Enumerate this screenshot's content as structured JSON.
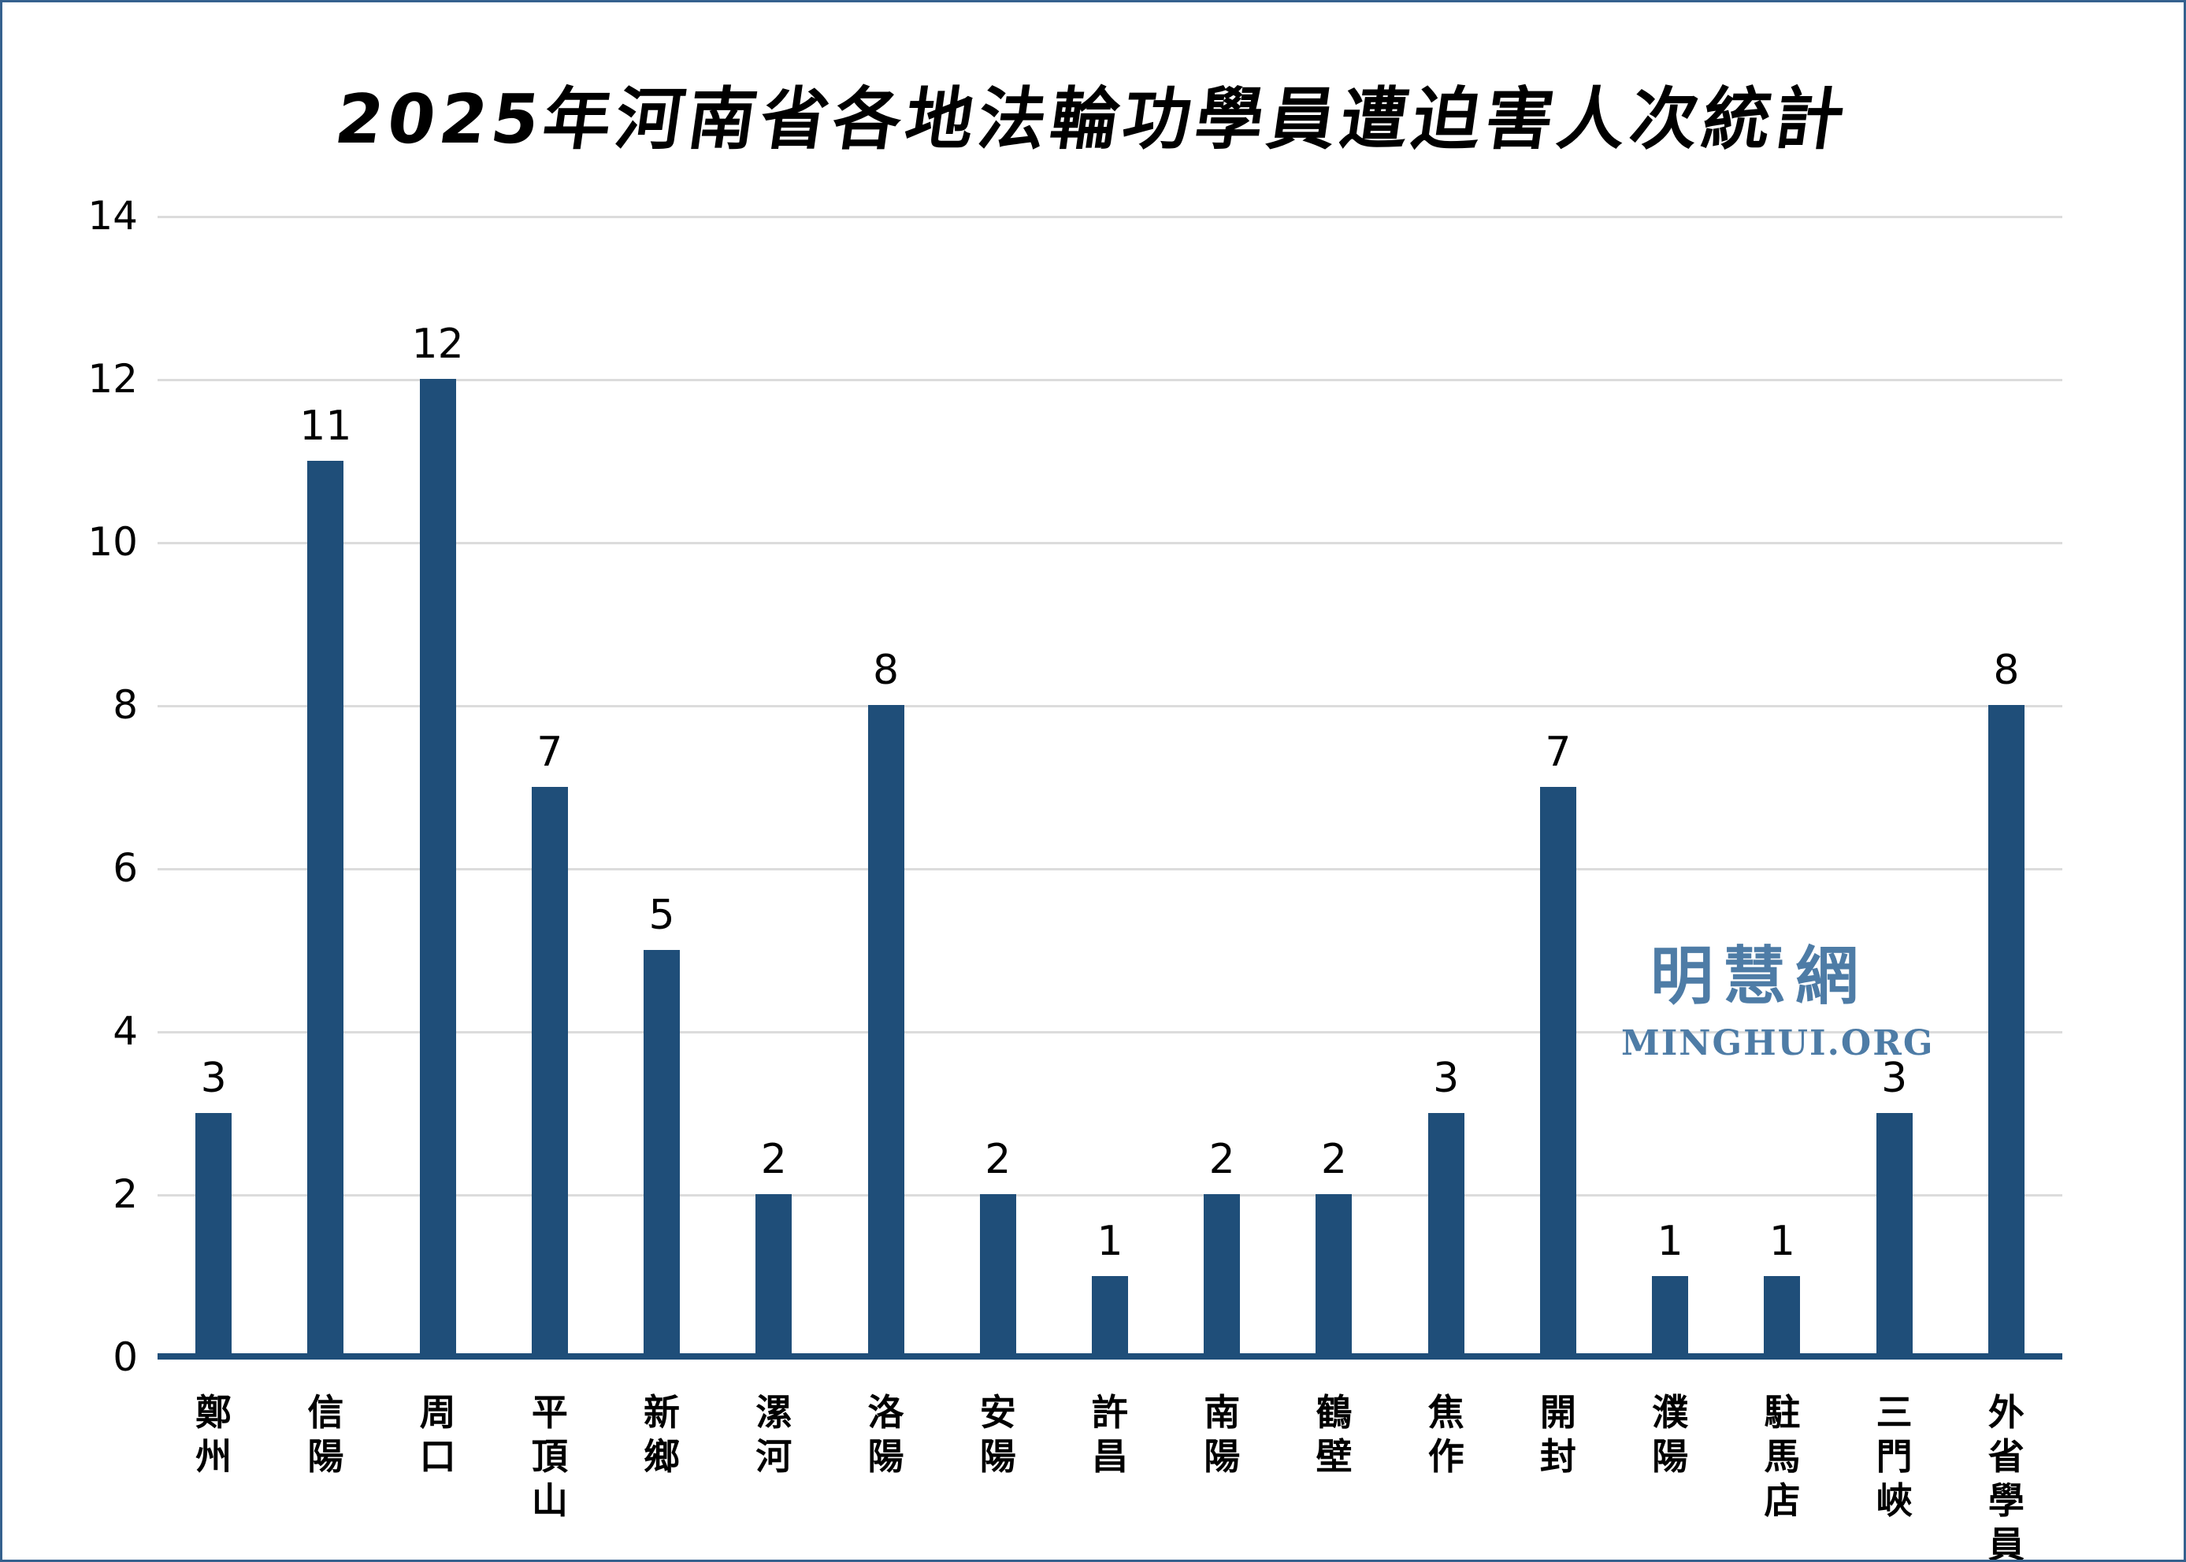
{
  "title": "2025年河南省各地法輪功學員遭迫害人次統計",
  "watermark": {
    "cjk": "明慧網",
    "latin": "MINGHUI.ORG",
    "color": "#4e7ca6"
  },
  "chart_data": {
    "type": "bar",
    "title": "2025年河南省各地法輪功學員遭迫害人次統計",
    "categories": [
      "鄭州",
      "信陽",
      "周口",
      "平頂山",
      "新鄉",
      "漯河",
      "洛陽",
      "安陽",
      "許昌",
      "南陽",
      "鶴壁",
      "焦作",
      "開封",
      "濮陽",
      "駐馬店",
      "三門峽",
      "外省學員"
    ],
    "values": [
      3,
      11,
      12,
      7,
      5,
      2,
      8,
      2,
      1,
      2,
      2,
      3,
      7,
      1,
      1,
      3,
      8
    ],
    "xlabel": "",
    "ylabel": "",
    "ylim": [
      0,
      14
    ],
    "yticks": [
      0,
      2,
      4,
      6,
      8,
      10,
      12,
      14
    ],
    "grid": true,
    "legend": false,
    "data_labels": true,
    "bar_color": "#1f4e79",
    "axis_line_color": "#1f4e79",
    "gridline_color": "#dcdcdc"
  }
}
